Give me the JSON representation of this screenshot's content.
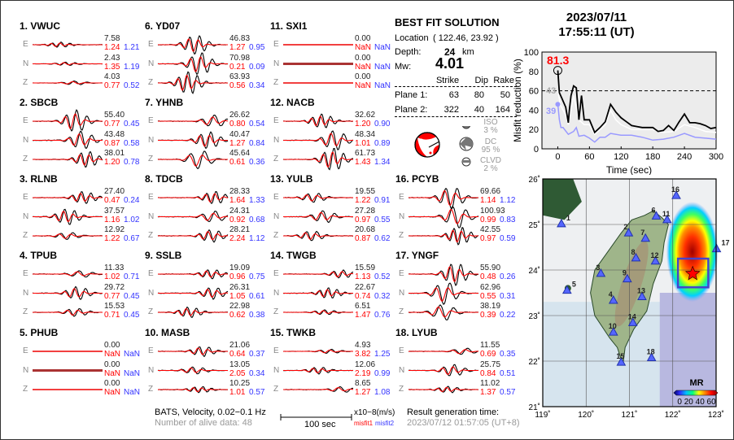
{
  "stations": [
    {
      "label": "1.  VWUC",
      "traces": [
        [
          "7.58",
          "1.24",
          "1.21"
        ],
        [
          "2.43",
          "1.35",
          "1.19"
        ],
        [
          "4.03",
          "0.77",
          "0.52"
        ]
      ]
    },
    {
      "label": "2.  SBCB",
      "traces": [
        [
          "55.40",
          "0.77",
          "0.45"
        ],
        [
          "43.48",
          "0.87",
          "0.58"
        ],
        [
          "38.01",
          "1.20",
          "0.78"
        ]
      ]
    },
    {
      "label": "3.  RLNB",
      "traces": [
        [
          "27.40",
          "0.47",
          "0.24"
        ],
        [
          "37.57",
          "1.16",
          "1.02"
        ],
        [
          "12.92",
          "1.22",
          "0.67"
        ]
      ]
    },
    {
      "label": "4.  TPUB",
      "traces": [
        [
          "11.33",
          "1.02",
          "0.71"
        ],
        [
          "29.72",
          "0.77",
          "0.45"
        ],
        [
          "15.53",
          "0.71",
          "0.45"
        ]
      ]
    },
    {
      "label": "5.  PHUB",
      "traces": [
        [
          "0.00",
          "NaN",
          "NaN"
        ],
        [
          "0.00",
          "NaN",
          "NaN"
        ],
        [
          "0.00",
          "NaN",
          "NaN"
        ]
      ]
    },
    {
      "label": "6.  YD07",
      "traces": [
        [
          "46.83",
          "1.27",
          "0.95"
        ],
        [
          "70.98",
          "0.21",
          "0.09"
        ],
        [
          "63.93",
          "0.56",
          "0.34"
        ]
      ]
    },
    {
      "label": "7.  YHNB",
      "traces": [
        [
          "26.62",
          "0.80",
          "0.54"
        ],
        [
          "40.47",
          "1.27",
          "0.84"
        ],
        [
          "45.64",
          "0.61",
          "0.36"
        ]
      ]
    },
    {
      "label": "8.  TDCB",
      "traces": [
        [
          "28.33",
          "1.64",
          "1.33"
        ],
        [
          "24.31",
          "0.92",
          "0.68"
        ],
        [
          "28.21",
          "2.24",
          "1.12"
        ]
      ]
    },
    {
      "label": "9.  SSLB",
      "traces": [
        [
          "19.09",
          "0.96",
          "0.75"
        ],
        [
          "26.31",
          "1.05",
          "0.61"
        ],
        [
          "22.98",
          "0.62",
          "0.38"
        ]
      ]
    },
    {
      "label": "10. MASB",
      "traces": [
        [
          "21.06",
          "0.64",
          "0.37"
        ],
        [
          "13.05",
          "2.05",
          "0.34"
        ],
        [
          "10.25",
          "1.01",
          "0.57"
        ]
      ]
    },
    {
      "label": "11. SXI1",
      "traces": [
        [
          "0.00",
          "NaN",
          "NaN"
        ],
        [
          "0.00",
          "NaN",
          "NaN"
        ],
        [
          "0.00",
          "NaN",
          "NaN"
        ]
      ]
    },
    {
      "label": "12. NACB",
      "traces": [
        [
          "32.62",
          "1.20",
          "0.90"
        ],
        [
          "48.34",
          "1.01",
          "0.89"
        ],
        [
          "61.73",
          "1.43",
          "1.34"
        ]
      ]
    },
    {
      "label": "13. YULB",
      "traces": [
        [
          "19.55",
          "1.22",
          "0.91"
        ],
        [
          "27.28",
          "0.97",
          "0.55"
        ],
        [
          "20.68",
          "0.87",
          "0.62"
        ]
      ]
    },
    {
      "label": "14. TWGB",
      "traces": [
        [
          "15.59",
          "1.13",
          "0.52"
        ],
        [
          "22.67",
          "0.74",
          "0.32"
        ],
        [
          "6.51",
          "1.47",
          "0.76"
        ]
      ]
    },
    {
      "label": "15. TWKB",
      "traces": [
        [
          "4.93",
          "3.82",
          "1.25"
        ],
        [
          "12.06",
          "2.19",
          "0.99"
        ],
        [
          "8.65",
          "1.27",
          "1.08"
        ]
      ]
    },
    {
      "label": "16. PCYB",
      "traces": [
        [
          "69.66",
          "1.14",
          "1.12"
        ],
        [
          "100.93",
          "0.99",
          "0.83"
        ],
        [
          "42.55",
          "0.97",
          "0.59"
        ]
      ]
    },
    {
      "label": "17. YNGF",
      "traces": [
        [
          "55.90",
          "0.48",
          "0.26"
        ],
        [
          "62.96",
          "0.55",
          "0.31"
        ],
        [
          "38.19",
          "0.39",
          "0.22"
        ]
      ]
    },
    {
      "label": "18. LYUB",
      "traces": [
        [
          "11.55",
          "0.69",
          "0.35"
        ],
        [
          "25.75",
          "0.84",
          "0.51"
        ],
        [
          "11.02",
          "1.37",
          "0.57"
        ]
      ]
    }
  ],
  "components": [
    "E",
    "N",
    "Z"
  ],
  "colors": {
    "observed": "#000000",
    "synthetic": "#ff0000",
    "misfit1": "#ff0000",
    "misfit2": "#3333ff"
  },
  "footer": {
    "network": "BATS, Velocity, 0.02−0.1 Hz",
    "alive": "Number of alive data: 48",
    "scale_label": "100 sec",
    "unit": "x10−8(m/s)",
    "misfit1": "misfit1",
    "misfit2": "misfit2",
    "gen_label": "Result generation time:",
    "gen_time": "2023/07/12 01:57:05 (UT+8)"
  },
  "solution": {
    "title": "BEST FIT SOLUTION",
    "location_label": "Location",
    "location": "( 122.46,  23.92 )",
    "depth_label": "Depth:",
    "depth": "24",
    "depth_unit": "km",
    "mw_label": "Mw:",
    "mw": "4.01",
    "headers": [
      "Strike",
      "Dip",
      "Rake"
    ],
    "planes": [
      {
        "label": "Plane 1:",
        "values": [
          "63",
          "80",
          "50"
        ]
      },
      {
        "label": "Plane 2:",
        "values": [
          "322",
          "40",
          "164"
        ]
      }
    ],
    "components": [
      {
        "name": "ISO",
        "pct": "3  %"
      },
      {
        "name": "DC",
        "pct": "95 %"
      },
      {
        "name": "CLVD",
        "pct": "2  %"
      }
    ]
  },
  "event": {
    "date": "2023/07/11",
    "time": "17:55:11  (UT)"
  },
  "chart_data": {
    "type": "line",
    "xlabel": "Time (sec)",
    "ylabel": "Misfit reduction (%)",
    "xlim": [
      -30,
      300
    ],
    "ylim": [
      0,
      100
    ],
    "xticks": [
      "0",
      "60",
      "120",
      "180",
      "240",
      "300"
    ],
    "yticks": [
      "0",
      "20",
      "40",
      "60",
      "80",
      "100"
    ],
    "threshold": 60,
    "peak_label": "81.3",
    "gray_label": "43",
    "blue_label": "39",
    "series": [
      {
        "color": "#000000",
        "x": [
          0,
          3,
          8,
          15,
          20,
          22,
          25,
          30,
          35,
          40,
          45,
          50,
          60,
          70,
          80,
          90,
          100,
          110,
          120,
          130,
          140,
          150,
          160,
          170,
          180,
          190,
          200,
          210,
          220,
          230,
          240,
          250,
          260,
          270,
          280,
          290,
          300
        ],
        "y": [
          81,
          58,
          52,
          43,
          27,
          40,
          55,
          65,
          63,
          30,
          55,
          30,
          30,
          17,
          22,
          28,
          46,
          38,
          32,
          28,
          24,
          23,
          22,
          22,
          22,
          18,
          19,
          24,
          19,
          28,
          36,
          27,
          27,
          26,
          24,
          21,
          22
        ]
      },
      {
        "color": "#ffffff",
        "x": [
          0,
          5,
          15,
          20,
          30,
          40,
          50,
          60,
          70,
          80,
          90,
          100,
          110,
          120,
          140,
          160,
          180,
          200,
          220,
          240,
          260,
          280,
          300
        ],
        "y": [
          60,
          45,
          35,
          25,
          55,
          30,
          25,
          25,
          15,
          20,
          25,
          40,
          30,
          25,
          20,
          20,
          20,
          17,
          18,
          25,
          22,
          18,
          17
        ]
      },
      {
        "color": "#9999ff",
        "x": [
          0,
          3,
          6,
          10,
          20,
          30,
          35,
          40,
          50,
          60,
          70,
          80,
          90,
          100,
          120,
          140,
          160,
          180,
          200,
          220,
          240,
          260,
          280,
          300
        ],
        "y": [
          46,
          30,
          22,
          22,
          15,
          18,
          22,
          13,
          14,
          11,
          7,
          12,
          12,
          16,
          14,
          14,
          12,
          9,
          10,
          12,
          16,
          12,
          11,
          10
        ]
      }
    ]
  },
  "map": {
    "lon_ticks": [
      "119˚",
      "120˚",
      "121˚",
      "122˚",
      "123˚"
    ],
    "lat_ticks": [
      "21˚",
      "22˚",
      "23˚",
      "24˚",
      "25˚",
      "26˚"
    ],
    "epicenter": {
      "lon": 122.46,
      "lat": 23.92
    },
    "colorbar_title": "MR",
    "colorbar_ticks": "0 20 40 60",
    "stations": [
      {
        "n": "1",
        "lon": 119.43,
        "lat": 25.02
      },
      {
        "n": "2",
        "lon": 120.98,
        "lat": 24.82
      },
      {
        "n": "3",
        "lon": 120.34,
        "lat": 23.93
      },
      {
        "n": "4",
        "lon": 120.63,
        "lat": 23.34
      },
      {
        "n": "5",
        "lon": 119.56,
        "lat": 23.56
      },
      {
        "n": "6",
        "lon": 121.62,
        "lat": 25.19
      },
      {
        "n": "7",
        "lon": 121.37,
        "lat": 24.7
      },
      {
        "n": "8",
        "lon": 121.15,
        "lat": 24.27
      },
      {
        "n": "9",
        "lon": 120.95,
        "lat": 23.81
      },
      {
        "n": "10",
        "lon": 120.63,
        "lat": 22.64
      },
      {
        "n": "11",
        "lon": 121.87,
        "lat": 25.11
      },
      {
        "n": "12",
        "lon": 121.6,
        "lat": 24.2
      },
      {
        "n": "13",
        "lon": 121.29,
        "lat": 23.42
      },
      {
        "n": "14",
        "lon": 121.08,
        "lat": 22.85
      },
      {
        "n": "15",
        "lon": 120.81,
        "lat": 21.98
      },
      {
        "n": "16",
        "lon": 122.08,
        "lat": 25.64
      },
      {
        "n": "17",
        "lon": 123.01,
        "lat": 24.47
      },
      {
        "n": "18",
        "lon": 121.51,
        "lat": 22.08
      }
    ]
  }
}
